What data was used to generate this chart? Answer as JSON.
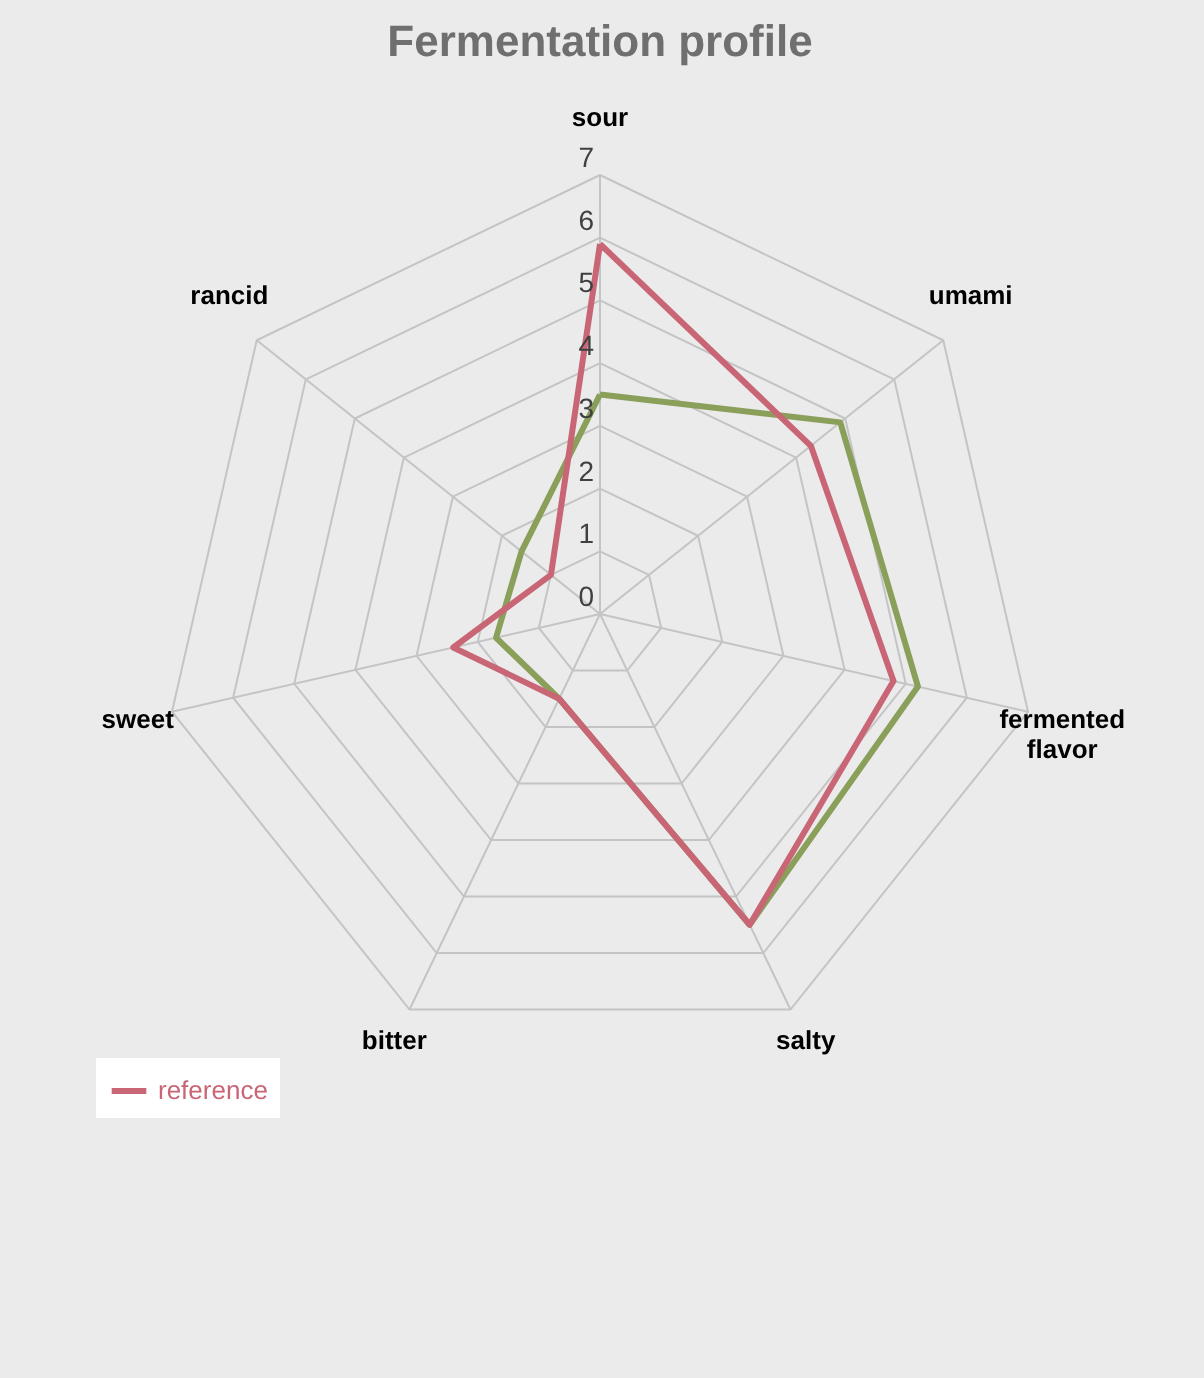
{
  "chart_data": {
    "type": "radar",
    "title": "Fermentation profile",
    "categories": [
      "sour",
      "umami",
      "fermented flavor",
      "salty",
      "bitter",
      "sweet",
      "rancid"
    ],
    "ylim": [
      0,
      7
    ],
    "yticks": [
      0,
      1,
      2,
      3,
      4,
      5,
      6,
      7
    ],
    "grid": true,
    "legend": "bottom left",
    "series": [
      {
        "color": "#8a9f5a",
        "values": [
          3.5,
          4.9,
          5.2,
          5.5,
          1.5,
          1.7,
          1.6
        ]
      },
      {
        "name": "reference",
        "color": "#c96676",
        "values": [
          5.9,
          4.3,
          4.8,
          5.5,
          1.5,
          2.4,
          1.0
        ]
      }
    ]
  }
}
